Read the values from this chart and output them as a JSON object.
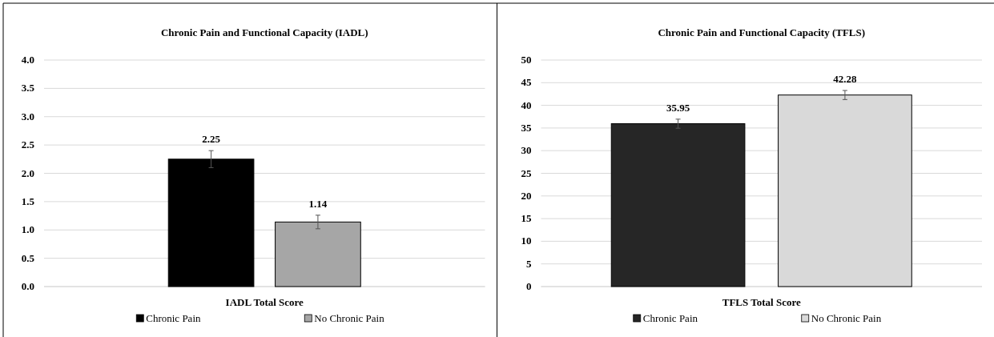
{
  "chart_data": [
    {
      "type": "bar",
      "title": "Chronic Pain and Functional Capacity (IADL)",
      "categories": [
        "IADL Total Score"
      ],
      "series": [
        {
          "name": "Chronic Pain",
          "color": "#000000",
          "values": [
            2.25
          ],
          "errors": [
            0.15
          ]
        },
        {
          "name": "No Chronic Pain",
          "color": "#a6a6a6",
          "values": [
            1.14
          ],
          "errors": [
            0.12
          ]
        }
      ],
      "ylim": [
        0,
        4
      ],
      "yticks": [
        {
          "value": 0,
          "label": "0.0"
        },
        {
          "value": 0.5,
          "label": "0.5"
        },
        {
          "value": 1,
          "label": "1.0"
        },
        {
          "value": 1.5,
          "label": "1.5"
        },
        {
          "value": 2,
          "label": "2.0"
        },
        {
          "value": 2.5,
          "label": "2.5"
        },
        {
          "value": 3,
          "label": "3.0"
        },
        {
          "value": 3.5,
          "label": "3.5"
        },
        {
          "value": 4,
          "label": "4.0"
        }
      ],
      "grid": "y",
      "legend": "bottom",
      "data_labels": true
    },
    {
      "type": "bar",
      "title": "Chronic Pain and Functional Capacity (TFLS)",
      "categories": [
        "TFLS Total Score"
      ],
      "series": [
        {
          "name": "Chronic Pain",
          "color": "#262626",
          "values": [
            35.95
          ],
          "errors": [
            1.0
          ]
        },
        {
          "name": "No Chronic Pain",
          "color": "#d9d9d9",
          "values": [
            42.28
          ],
          "errors": [
            1.0
          ]
        }
      ],
      "ylim": [
        0,
        50
      ],
      "yticks": [
        0,
        5,
        10,
        15,
        20,
        25,
        30,
        35,
        40,
        45,
        50
      ],
      "grid": "y",
      "legend": "bottom",
      "data_labels": true
    }
  ]
}
